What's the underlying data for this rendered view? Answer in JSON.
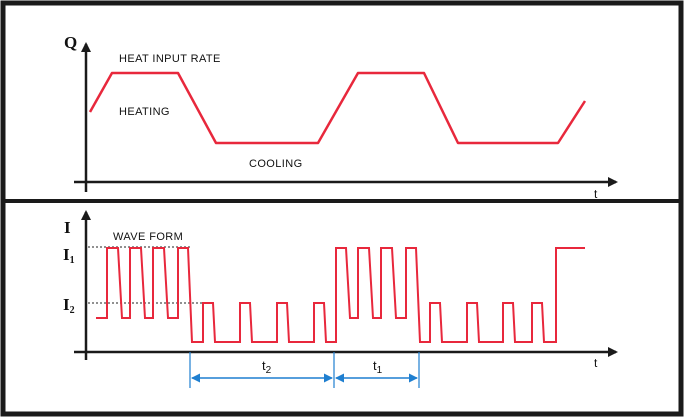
{
  "colors": {
    "frame": "#1a1a1a",
    "axis": "#1a1a1a",
    "curve": "#e8283c",
    "dimension": "#1f7fd0",
    "guide": "#222222"
  },
  "top_chart": {
    "y_axis_label": "Q",
    "x_axis_label": "t",
    "labels": {
      "heat_input_rate": "HEAT INPUT RATE",
      "heating": "HEATING",
      "cooling": "COOLING"
    }
  },
  "bottom_chart": {
    "y_axis_label": "I",
    "x_axis_label": "t",
    "level_high": {
      "base": "I",
      "sub": "1"
    },
    "level_low": {
      "base": "I",
      "sub": "2"
    },
    "wave_label": "WAVE FORM",
    "interval_t2": {
      "base": "t",
      "sub": "2"
    },
    "interval_t1": {
      "base": "t",
      "sub": "1"
    }
  }
}
